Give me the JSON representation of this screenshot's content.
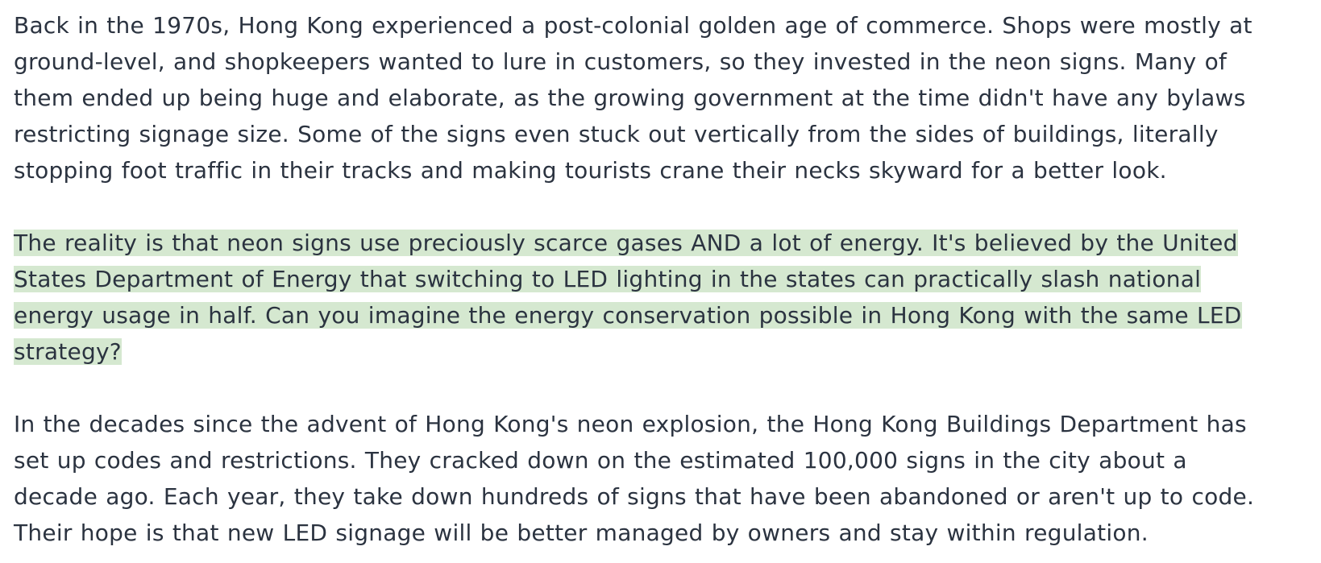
{
  "article": {
    "paragraphs": [
      {
        "highlighted": false,
        "lines": [
          "Back in the 1970s, Hong Kong experienced a post-colonial golden age of commerce. Shops were mostly at",
          "ground-level, and shopkeepers wanted to lure in customers, so they invested in the neon signs. Many of",
          "them ended up being huge and elaborate, as the growing government at the time didn't have any bylaws",
          "restricting signage size. Some of the signs even stuck out vertically from the sides of buildings, literally",
          "stopping foot traffic in their tracks and making tourists crane their necks skyward for a better look."
        ]
      },
      {
        "highlighted": true,
        "highlight_color": "#d5e8d0",
        "lines": [
          "The reality is that neon signs use preciously scarce gases AND a lot of energy. It's believed by the United ",
          "States Department of Energy that switching to LED lighting in the states can practically slash national ",
          "energy usage in half. Can you imagine the energy conservation possible in Hong Kong with the same LED ",
          "strategy?"
        ]
      },
      {
        "highlighted": false,
        "lines": [
          "In the decades since the advent of Hong Kong's neon explosion, the Hong Kong Buildings Department has",
          "set up codes and restrictions. They cracked down on the estimated 100,000 signs in the city about a",
          "decade ago. Each year, they take down hundreds of signs that have been abandoned or aren't up to code.",
          "Their hope is that new LED signage will be better managed by owners and stay within regulation."
        ]
      }
    ]
  }
}
